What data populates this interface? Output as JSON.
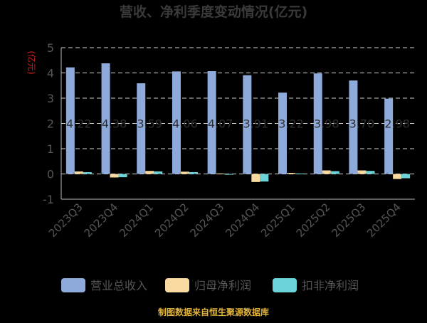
{
  "chart_data": {
    "type": "bar",
    "title": "营收、净利季度变动情况(亿元)",
    "ylabel": "(亿元)",
    "ylim": [
      -1,
      5
    ],
    "yticks": [
      -1,
      0,
      1,
      2,
      3,
      4,
      5
    ],
    "grid": true,
    "legend_position": "bottom",
    "categories": [
      "2023Q3",
      "2023Q4",
      "2024Q1",
      "2024Q2",
      "2024Q3",
      "2024Q4",
      "2025Q1",
      "2025Q2",
      "2025Q3",
      "2025Q4"
    ],
    "series": [
      {
        "name": "营业总收入",
        "color": "#8EAADB",
        "values": [
          4.22,
          4.38,
          3.59,
          4.06,
          4.07,
          3.91,
          3.22,
          3.98,
          3.7,
          2.98
        ]
      },
      {
        "name": "归母净利润",
        "color": "#F8D9A0",
        "values": [
          0.1,
          -0.14,
          0.12,
          0.09,
          0.02,
          -0.32,
          0.04,
          0.14,
          0.14,
          -0.2
        ]
      },
      {
        "name": "扣非净利润",
        "color": "#6CD4D9",
        "values": [
          0.07,
          -0.13,
          0.1,
          0.07,
          -0.03,
          -0.3,
          0.02,
          0.11,
          0.12,
          -0.17
        ]
      }
    ],
    "data_labels": [
      "4.22",
      "4.38",
      "3.59",
      "4.06",
      "4.07",
      "3.91",
      "3.22",
      "3.98",
      "3.70",
      "2.98"
    ]
  },
  "footer": {
    "source": "制图数据来自恒生聚源数据库"
  }
}
